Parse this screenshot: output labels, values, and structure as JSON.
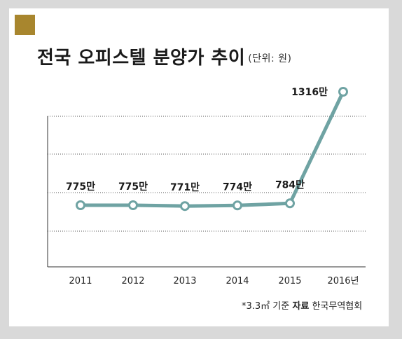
{
  "header": {
    "title": "전국 오피스텔 분양가 추이",
    "unit": "(단위: 원)"
  },
  "footnote": {
    "basis": "*3.3㎡ 기준",
    "source_label": "자료",
    "source": "한국무역협회"
  },
  "colors": {
    "background": "#d9d9d9",
    "card": "#ffffff",
    "badge": "#a8862e",
    "line": "#6fa3a3",
    "grid": "#555555"
  },
  "chart_data": {
    "type": "line",
    "categories": [
      "2011",
      "2012",
      "2013",
      "2014",
      "2015",
      "2016년"
    ],
    "values": [
      775,
      775,
      771,
      774,
      784,
      1316
    ],
    "data_labels": [
      "775만",
      "775만",
      "771만",
      "774만",
      "784만",
      "1316만"
    ],
    "grid": "horizontal-dotted",
    "legend": "none"
  }
}
